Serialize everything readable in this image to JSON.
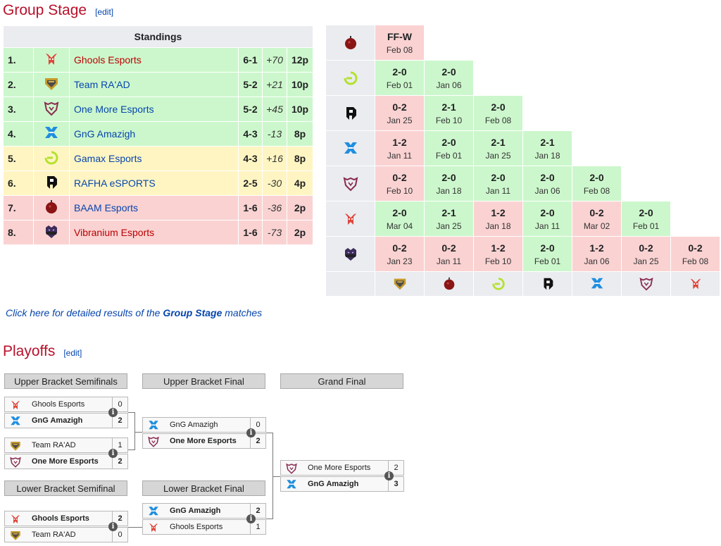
{
  "group_stage": {
    "title": "Group Stage",
    "edit": "[edit]",
    "standings_header": "Standings",
    "rows": [
      {
        "rank": "1.",
        "team": "Ghools Esports",
        "record": "6-1",
        "diff": "+70",
        "points": "12p",
        "logo": "ghools",
        "color": "red"
      },
      {
        "rank": "2.",
        "team": "Team RA'AD",
        "record": "5-2",
        "diff": "+21",
        "points": "10p",
        "logo": "raad",
        "color": "blue"
      },
      {
        "rank": "3.",
        "team": "One More Esports",
        "record": "5-2",
        "diff": "+45",
        "points": "10p",
        "logo": "onemore",
        "color": "blue"
      },
      {
        "rank": "4.",
        "team": "GnG Amazigh",
        "record": "4-3",
        "diff": "-13",
        "points": "8p",
        "logo": "gng",
        "color": "blue"
      },
      {
        "rank": "5.",
        "team": "Gamax Esports",
        "record": "4-3",
        "diff": "+16",
        "points": "8p",
        "logo": "gamax",
        "color": "blue"
      },
      {
        "rank": "6.",
        "team": "RAFHA eSPORTS",
        "record": "2-5",
        "diff": "-30",
        "points": "4p",
        "logo": "rafha",
        "color": "blue"
      },
      {
        "rank": "7.",
        "team": "BAAM Esports",
        "record": "1-6",
        "diff": "-36",
        "points": "2p",
        "logo": "baam",
        "color": "blue"
      },
      {
        "rank": "8.",
        "team": "Vibranium Esports",
        "record": "1-6",
        "diff": "-73",
        "points": "2p",
        "logo": "vibranium",
        "color": "red"
      }
    ],
    "cross": {
      "rows": [
        {
          "logo": "baam",
          "cells": [
            {
              "s": "FF-W",
              "d": "Feb 08",
              "r": "l"
            }
          ]
        },
        {
          "logo": "gamax",
          "cells": [
            {
              "s": "2-0",
              "d": "Feb 01",
              "r": "w"
            },
            {
              "s": "2-0",
              "d": "Jan 06",
              "r": "w"
            }
          ]
        },
        {
          "logo": "rafha",
          "cells": [
            {
              "s": "0-2",
              "d": "Jan 25",
              "r": "l"
            },
            {
              "s": "2-1",
              "d": "Feb 10",
              "r": "w"
            },
            {
              "s": "2-0",
              "d": "Feb 08",
              "r": "w"
            }
          ]
        },
        {
          "logo": "gng",
          "cells": [
            {
              "s": "1-2",
              "d": "Jan 11",
              "r": "l"
            },
            {
              "s": "2-0",
              "d": "Feb 01",
              "r": "w"
            },
            {
              "s": "2-1",
              "d": "Jan 25",
              "r": "w"
            },
            {
              "s": "2-1",
              "d": "Jan 18",
              "r": "w"
            }
          ]
        },
        {
          "logo": "onemore",
          "cells": [
            {
              "s": "0-2",
              "d": "Feb 10",
              "r": "l"
            },
            {
              "s": "2-0",
              "d": "Jan 18",
              "r": "w"
            },
            {
              "s": "2-0",
              "d": "Jan 11",
              "r": "w"
            },
            {
              "s": "2-0",
              "d": "Jan 06",
              "r": "w"
            },
            {
              "s": "2-0",
              "d": "Feb 08",
              "r": "w"
            }
          ]
        },
        {
          "logo": "ghools",
          "cells": [
            {
              "s": "2-0",
              "d": "Mar 04",
              "r": "w"
            },
            {
              "s": "2-1",
              "d": "Jan 25",
              "r": "w"
            },
            {
              "s": "1-2",
              "d": "Jan 18",
              "r": "l"
            },
            {
              "s": "2-0",
              "d": "Jan 11",
              "r": "w"
            },
            {
              "s": "0-2",
              "d": "Mar 02",
              "r": "l"
            },
            {
              "s": "2-0",
              "d": "Feb 01",
              "r": "w"
            }
          ]
        },
        {
          "logo": "vibranium",
          "cells": [
            {
              "s": "0-2",
              "d": "Jan 23",
              "r": "l"
            },
            {
              "s": "0-2",
              "d": "Jan 11",
              "r": "l"
            },
            {
              "s": "1-2",
              "d": "Feb 10",
              "r": "l"
            },
            {
              "s": "2-0",
              "d": "Feb 01",
              "r": "w"
            },
            {
              "s": "1-2",
              "d": "Jan 06",
              "r": "l"
            },
            {
              "s": "0-2",
              "d": "Jan 25",
              "r": "l"
            },
            {
              "s": "0-2",
              "d": "Feb 08",
              "r": "l"
            }
          ]
        }
      ],
      "bottom_logos": [
        "raad",
        "baam",
        "gamax",
        "rafha",
        "gng",
        "onemore",
        "ghools"
      ]
    },
    "note_prefix": "Click here for detailed results of the ",
    "note_bold": "Group Stage",
    "note_suffix": " matches"
  },
  "playoffs": {
    "title": "Playoffs",
    "edit": "[edit]",
    "headers": {
      "ubsf": "Upper Bracket Semifinals",
      "ubf": "Upper Bracket Final",
      "gf": "Grand Final",
      "lbsf": "Lower Bracket Semifinal",
      "lbf": "Lower Bracket Final"
    },
    "matches": [
      {
        "id": "ubsf1",
        "teams": [
          {
            "name": "Ghools Esports",
            "score": "0",
            "logo": "ghools",
            "win": false
          },
          {
            "name": "GnG Amazigh",
            "score": "2",
            "logo": "gng",
            "win": true
          }
        ]
      },
      {
        "id": "ubsf2",
        "teams": [
          {
            "name": "Team RA'AD",
            "score": "1",
            "logo": "raad",
            "win": false
          },
          {
            "name": "One More Esports",
            "score": "2",
            "logo": "onemore",
            "win": true
          }
        ]
      },
      {
        "id": "ubf",
        "teams": [
          {
            "name": "GnG Amazigh",
            "score": "0",
            "logo": "gng",
            "win": false
          },
          {
            "name": "One More Esports",
            "score": "2",
            "logo": "onemore",
            "win": true
          }
        ]
      },
      {
        "id": "gf",
        "teams": [
          {
            "name": "One More Esports",
            "score": "2",
            "logo": "onemore",
            "win": false
          },
          {
            "name": "GnG Amazigh",
            "score": "3",
            "logo": "gng",
            "win": true
          }
        ]
      },
      {
        "id": "lbsf",
        "teams": [
          {
            "name": "Ghools Esports",
            "score": "2",
            "logo": "ghools",
            "win": true
          },
          {
            "name": "Team RA'AD",
            "score": "0",
            "logo": "raad",
            "win": false
          }
        ]
      },
      {
        "id": "lbf",
        "teams": [
          {
            "name": "GnG Amazigh",
            "score": "2",
            "logo": "gng",
            "win": true
          },
          {
            "name": "Ghools Esports",
            "score": "1",
            "logo": "ghools",
            "win": false
          }
        ]
      }
    ],
    "info_icon": "i"
  },
  "colors": {
    "win": "#ccf7cc",
    "loss": "#fad2d2",
    "promote": "#ccf7cc",
    "middle": "#fff5c2",
    "relegate": "#fad2d2",
    "link": "#0645ad",
    "heading": "#b8102a",
    "red_link": "#ba0000"
  }
}
